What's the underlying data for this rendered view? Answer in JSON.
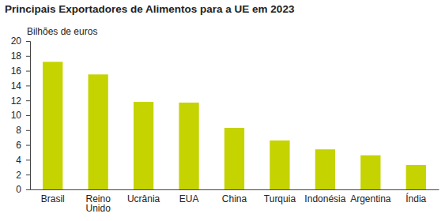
{
  "chart_data": {
    "type": "bar",
    "title": "Principais Exportadores de Alimentos para a UE em 2023",
    "y_label": "Bilhões de euros",
    "categories": [
      "Brasil",
      "Reino Unido",
      "Ucrânia",
      "EUA",
      "China",
      "Turquia",
      "Indonésia",
      "Argentina",
      "Índia"
    ],
    "values": [
      17.2,
      15.5,
      11.8,
      11.7,
      8.3,
      6.6,
      5.4,
      4.6,
      3.3
    ],
    "color": "#c5d300",
    "ylim": [
      0,
      20
    ],
    "yticks": [
      0,
      2,
      4,
      6,
      8,
      10,
      12,
      14,
      16,
      18,
      20
    ],
    "grid": false
  }
}
